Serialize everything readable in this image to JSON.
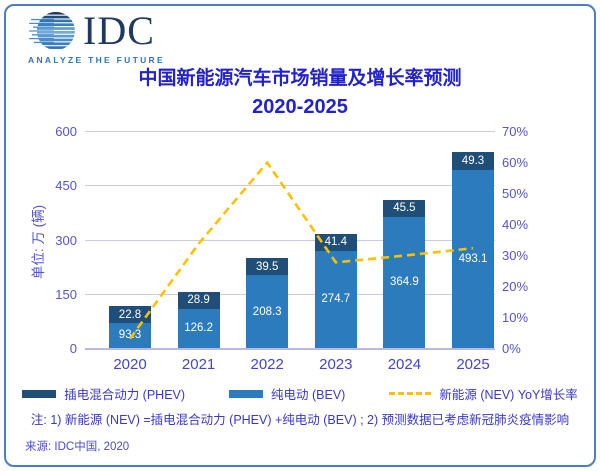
{
  "logo": {
    "brand": "IDC",
    "tagline": "ANALYZE THE FUTURE"
  },
  "title": {
    "line1": "中国新能源汽车市场销量及增长率预测",
    "line2": "2020-2025"
  },
  "chart_data": {
    "type": "bar",
    "subtype": "stacked-bars-with-line",
    "title": "中国新能源汽车市场销量及增长率预测 2020-2025",
    "categories": [
      "2020",
      "2021",
      "2022",
      "2023",
      "2024",
      "2025"
    ],
    "series": [
      {
        "name": "插电混合动力 (PHEV)",
        "type": "bar",
        "stack_position": "top",
        "color": "#1F4E79",
        "values": [
          22.8,
          28.9,
          39.5,
          41.4,
          45.5,
          49.3
        ]
      },
      {
        "name": "纯电动 (BEV)",
        "type": "bar",
        "stack_position": "bottom",
        "color": "#2B7BBD",
        "values": [
          93.3,
          126.2,
          208.3,
          274.7,
          364.9,
          493.1
        ]
      },
      {
        "name": "新能源 (NEV) YoY增长率",
        "type": "line",
        "dashed": true,
        "color": "#FFC000",
        "axis": "right",
        "values_pct": [
          3.0,
          33.6,
          59.8,
          27.6,
          29.8,
          32.2
        ]
      }
    ],
    "stacked_totals": [
      116.1,
      155.1,
      247.8,
      316.1,
      410.4,
      542.4
    ],
    "ylabel_left": "单位: 万 (辆)",
    "left_axis": {
      "ticks": [
        0,
        150,
        300,
        450,
        600
      ],
      "max": 600
    },
    "right_axis": {
      "ticks_pct": [
        0,
        10,
        20,
        30,
        40,
        50,
        60,
        70
      ],
      "max_pct": 70,
      "format": "percent"
    },
    "grid": true,
    "legend_position": "bottom"
  },
  "note": "注: 1) 新能源 (NEV) =插电混合动力 (PHEV) +纯电动 (BEV) ; 2) 预测数据已考虑新冠肺炎疫情影响",
  "source": "来源: IDC中国, 2020",
  "colors": {
    "title": "#2222CC",
    "axis_text": "#5454D0",
    "grid": "#C9C9EC",
    "border": "#4A7CC7",
    "phev": "#1F4E79",
    "bev": "#2B7BBD",
    "line": "#FFC000",
    "logo_navy": "#1F3864",
    "tagline_blue": "#2E75B6",
    "bar_label": "#FFFFFF"
  }
}
